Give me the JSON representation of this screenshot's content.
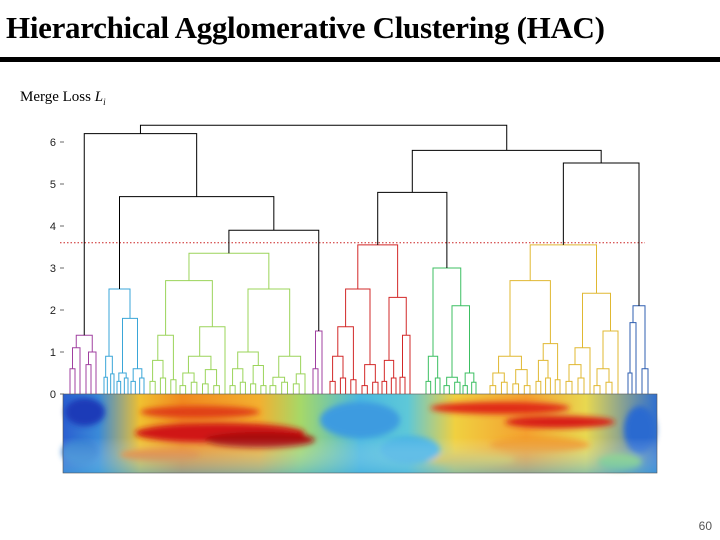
{
  "slide": {
    "title": "Hierarchical Agglomerative Clustering (HAC)",
    "axis_caption_prefix": "Merge Loss ",
    "axis_caption_symbol": "L",
    "axis_caption_subscript": "i",
    "page_number": "60"
  },
  "dendrogram": {
    "y_ticks": [
      "0",
      "1",
      "2",
      "3",
      "4",
      "5",
      "6"
    ],
    "cut_level": 3.6,
    "cluster_colors": {
      "purple": "#a040a0",
      "cyan": "#3aa6d8",
      "lime": "#9bd45a",
      "red": "#d22828",
      "green": "#3cbf62",
      "yellow": "#e0b832",
      "blue": "#2f5fb0",
      "black": "#000000",
      "cut_line": "#cc2222"
    }
  }
}
